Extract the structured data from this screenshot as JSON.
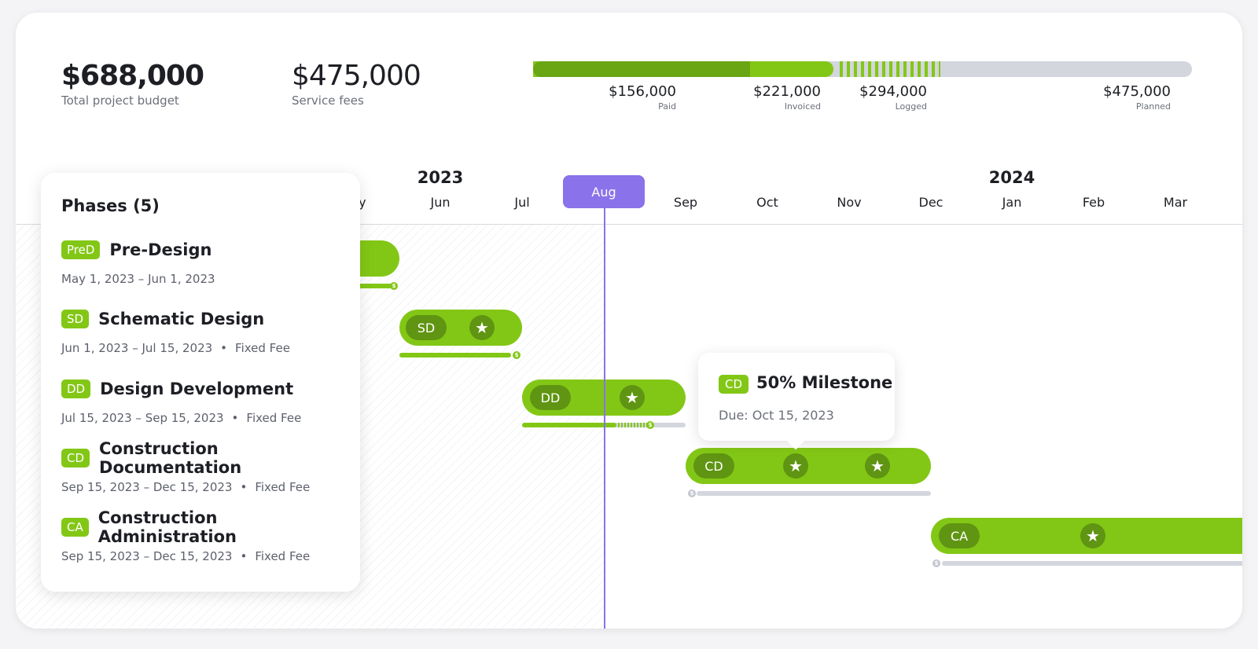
{
  "summary": {
    "total_budget": "$688,000",
    "total_budget_label": "Total project budget",
    "service_fees": "$475,000",
    "service_fees_label": "Service fees"
  },
  "budget_bar": {
    "paid_fraction": 0.328,
    "invoiced_fraction": 0.465,
    "logged_fraction": 0.619,
    "colors": {
      "paid": "#6aa514",
      "invoiced": "#83c716",
      "logged": "#83c716",
      "planned": "#d3d6dd"
    },
    "labels": [
      {
        "amount": "$156,000",
        "caption": "Paid"
      },
      {
        "amount": "$221,000",
        "caption": "Invoiced"
      },
      {
        "amount": "$294,000",
        "caption": "Logged"
      },
      {
        "amount": "$475,000",
        "caption": "Planned"
      }
    ]
  },
  "timeline": {
    "years": [
      "2023",
      "2024"
    ],
    "months": [
      "ay",
      "Jun",
      "Jul",
      "Aug",
      "Sep",
      "Oct",
      "Nov",
      "Dec",
      "Jan",
      "Feb",
      "Mar"
    ],
    "current_month": "Aug",
    "accent_color": "#8a72ea"
  },
  "gantt": [
    {
      "abbr": "PreD",
      "stars": 0,
      "progress": 1.0,
      "logged": 0
    },
    {
      "abbr": "SD",
      "stars": 1,
      "progress": 1.0,
      "logged": 0
    },
    {
      "abbr": "DD",
      "stars": 1,
      "progress": 0.58,
      "logged": 0.22
    },
    {
      "abbr": "CD",
      "stars": 2,
      "progress": 0,
      "logged": 0
    },
    {
      "abbr": "CA",
      "stars": 1,
      "progress": 0,
      "logged": 0
    }
  ],
  "tooltip": {
    "badge": "CD",
    "title": "50% Milestone",
    "due": "Due: Oct 15, 2023"
  },
  "phases_panel": {
    "title": "Phases (5)",
    "items": [
      {
        "abbr": "PreD",
        "name": "Pre-Design",
        "dates": "May 1, 2023 – Jun 1, 2023",
        "fee": ""
      },
      {
        "abbr": "SD",
        "name": "Schematic Design",
        "dates": "Jun 1, 2023 – Jul 15, 2023",
        "fee": "Fixed Fee"
      },
      {
        "abbr": "DD",
        "name": "Design Development",
        "dates": "Jul 15, 2023 – Sep 15, 2023",
        "fee": "Fixed Fee"
      },
      {
        "abbr": "CD",
        "name": "Construction Documentation",
        "dates": "Sep 15, 2023 – Dec 15, 2023",
        "fee": "Fixed Fee"
      },
      {
        "abbr": "CA",
        "name": "Construction Administration",
        "dates": "Sep 15, 2023 – Dec 15, 2023",
        "fee": "Fixed Fee"
      }
    ]
  },
  "icons": {
    "star": "star-icon",
    "coin": "dollar-coin-icon"
  }
}
